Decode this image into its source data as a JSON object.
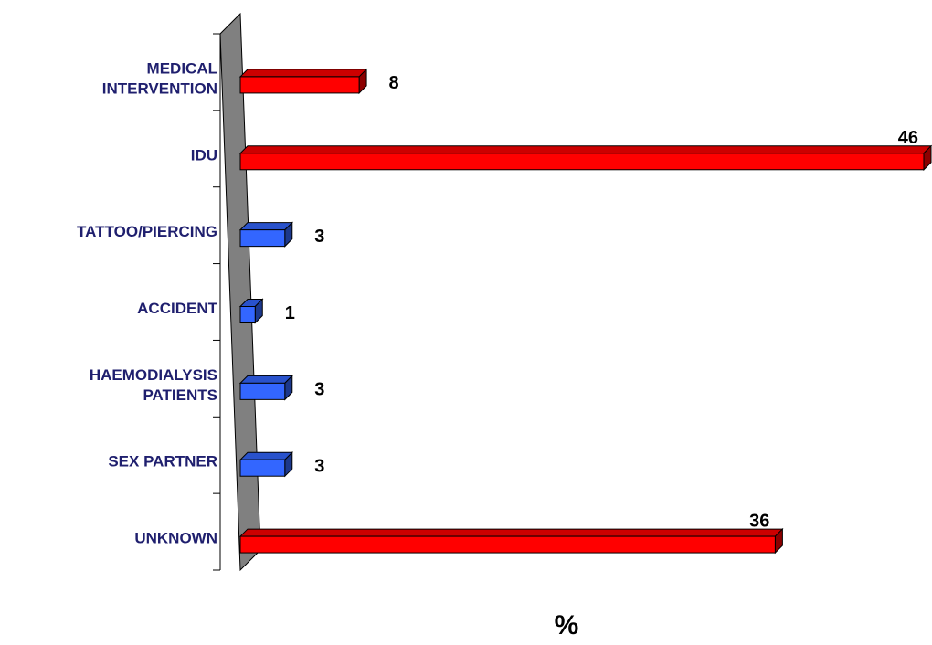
{
  "chart_data": {
    "type": "bar",
    "orientation": "horizontal",
    "style": "3d",
    "categories": [
      [
        "MEDICAL",
        "INTERVENTION"
      ],
      [
        "IDU"
      ],
      [
        "TATTOO/PIERCING"
      ],
      [
        "ACCIDENT"
      ],
      [
        "HAEMODIALYSIS",
        "PATIENTS"
      ],
      [
        "SEX PARTNER"
      ],
      [
        "UNKNOWN"
      ]
    ],
    "values": [
      8,
      46,
      3,
      1,
      3,
      3,
      36
    ],
    "value_labels": [
      "8",
      "46",
      "3",
      "1",
      "3",
      "3",
      "36"
    ],
    "bar_colors": [
      "#ff0000",
      "#ff0000",
      "#3366ff",
      "#3366ff",
      "#3366ff",
      "#3366ff",
      "#ff0000"
    ],
    "xlabel": "%",
    "xlim": [
      0,
      46
    ],
    "grid": false,
    "legend": "none",
    "wall_color": "#808080"
  }
}
